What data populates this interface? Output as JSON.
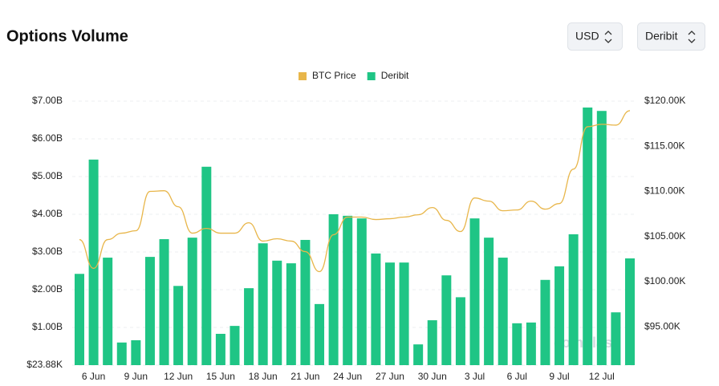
{
  "header": {
    "title": "Options Volume",
    "buttons": [
      "USD",
      "Deribit"
    ]
  },
  "chart_data": {
    "type": "bar_line",
    "categories": [
      null,
      "6 Jun",
      null,
      null,
      "9 Jun",
      null,
      null,
      "12 Jun",
      null,
      null,
      "15 Jun",
      null,
      null,
      "18 Jun",
      null,
      null,
      "21 Jun",
      null,
      null,
      "24 Jun",
      null,
      null,
      "27 Jun",
      null,
      null,
      "30 Jun",
      null,
      null,
      "3 Jul",
      null,
      null,
      "6 Jul",
      null,
      null,
      "9 Jul",
      null,
      null,
      "12 Jul",
      null,
      null
    ],
    "series": [
      {
        "name": "BTC Price",
        "color": "#e8b64a",
        "axis": "y2",
        "kind": "line",
        "values": [
          104660,
          101470,
          104660,
          105370,
          105640,
          110000,
          110070,
          108300,
          105370,
          105900,
          105370,
          105370,
          106520,
          104490,
          104750,
          104490,
          103330,
          101110,
          105200,
          107150,
          107150,
          106880,
          106970,
          107150,
          107410,
          108210,
          106790,
          105550,
          109270,
          108920,
          107850,
          107940,
          108920,
          108030,
          108650,
          112470,
          117160,
          117430,
          117340,
          118940
        ]
      },
      {
        "name": "Deribit",
        "color": "#1fc585",
        "axis": "y",
        "kind": "bar",
        "values": [
          2.42,
          5.45,
          2.85,
          0.6,
          0.66,
          2.87,
          3.34,
          2.1,
          3.38,
          5.26,
          0.83,
          1.04,
          2.04,
          3.23,
          2.77,
          2.7,
          3.32,
          1.62,
          4.0,
          3.96,
          3.89,
          2.96,
          2.72,
          2.72,
          0.55,
          1.19,
          2.38,
          1.8,
          3.89,
          3.38,
          2.85,
          1.11,
          1.13,
          2.26,
          2.62,
          3.47,
          6.83,
          6.74,
          1.4,
          2.83
        ]
      }
    ],
    "ylim": [
      2.388e-05,
      7
    ],
    "yticks": [
      {
        "value": 2.388e-05,
        "label": "$23.88K"
      },
      {
        "value": 1,
        "label": "$1.00B"
      },
      {
        "value": 2,
        "label": "$2.00B"
      },
      {
        "value": 3,
        "label": "$3.00B"
      },
      {
        "value": 4,
        "label": "$4.00B"
      },
      {
        "value": 5,
        "label": "$5.00B"
      },
      {
        "value": 6,
        "label": "$6.00B"
      },
      {
        "value": 7,
        "label": "$7.00B"
      }
    ],
    "y2lim": [
      90750,
      120000
    ],
    "y2ticks": [
      {
        "value": 95000,
        "label": "$95.00K"
      },
      {
        "value": 100000,
        "label": "$100.00K"
      },
      {
        "value": 105000,
        "label": "$105.00K"
      },
      {
        "value": 110000,
        "label": "$110.00K"
      },
      {
        "value": 115000,
        "label": "$115.00K"
      },
      {
        "value": 120000,
        "label": "$120.00K"
      }
    ],
    "grid": true,
    "legend": "top",
    "watermark": "coinglass"
  }
}
